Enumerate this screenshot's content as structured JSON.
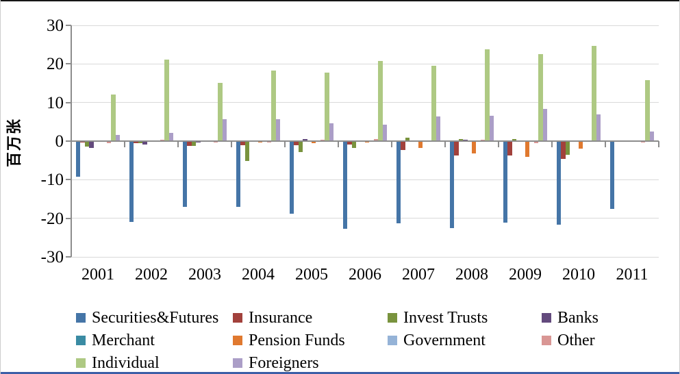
{
  "chart_data": {
    "type": "bar",
    "title": "",
    "ylabel": "百万张",
    "xlabel": "",
    "ylim": [
      -30,
      30
    ],
    "yticks": [
      30,
      20,
      10,
      0,
      -10,
      -20,
      -30
    ],
    "grid": true,
    "legend_position": "bottom",
    "categories": [
      "2001",
      "2002",
      "2003",
      "2004",
      "2005",
      "2006",
      "2007",
      "2008",
      "2009",
      "2010",
      "2011"
    ],
    "series": [
      {
        "name": "Securities&Futures",
        "color": "#4575a7",
        "values": [
          -9.3,
          -21.0,
          -17.0,
          -17.0,
          -18.8,
          -22.8,
          -21.3,
          -22.6,
          -21.2,
          -21.7,
          -17.6
        ]
      },
      {
        "name": "Insurance",
        "color": "#a2413c",
        "values": [
          -0.3,
          -0.6,
          -1.2,
          -1.0,
          -1.0,
          -0.8,
          -2.3,
          -3.8,
          -3.8,
          -4.7,
          -0.2
        ]
      },
      {
        "name": "Invest Trusts",
        "color": "#79933e",
        "values": [
          -1.4,
          -0.6,
          -1.2,
          -5.2,
          -2.9,
          -1.7,
          0.9,
          0.6,
          0.6,
          -3.6,
          0.2
        ]
      },
      {
        "name": "Banks",
        "color": "#634a7d",
        "values": [
          -1.7,
          -0.8,
          -0.3,
          -0.2,
          0.5,
          -0.2,
          0.2,
          0.3,
          0.2,
          -0.2,
          0.1
        ]
      },
      {
        "name": "Merchant",
        "color": "#3a8ba3",
        "values": [
          0,
          -0.1,
          0,
          0,
          0.1,
          0,
          0,
          0,
          0,
          0,
          0
        ]
      },
      {
        "name": "Pension Funds",
        "color": "#e0792f",
        "values": [
          0,
          0,
          -0.1,
          -0.3,
          -0.5,
          -0.4,
          -1.8,
          -3.2,
          -4.0,
          -1.9,
          0
        ]
      },
      {
        "name": "Government",
        "color": "#95b3d7",
        "values": [
          0,
          0,
          0,
          0,
          0.1,
          0,
          0,
          0,
          0,
          0,
          0
        ]
      },
      {
        "name": "Other",
        "color": "#d99694",
        "values": [
          -0.6,
          0.3,
          -0.3,
          -0.3,
          0.4,
          0.5,
          0.1,
          0.4,
          -0.5,
          -0.2,
          -0.3
        ]
      },
      {
        "name": "Individual",
        "color": "#aec983",
        "values": [
          12.1,
          21.2,
          15.1,
          18.2,
          17.8,
          20.8,
          19.5,
          23.7,
          22.5,
          24.7,
          15.8
        ]
      },
      {
        "name": "Foreigners",
        "color": "#ab9ec7",
        "values": [
          1.6,
          2.1,
          5.7,
          5.6,
          4.6,
          4.3,
          6.4,
          6.5,
          8.3,
          7.0,
          2.4
        ]
      }
    ]
  }
}
